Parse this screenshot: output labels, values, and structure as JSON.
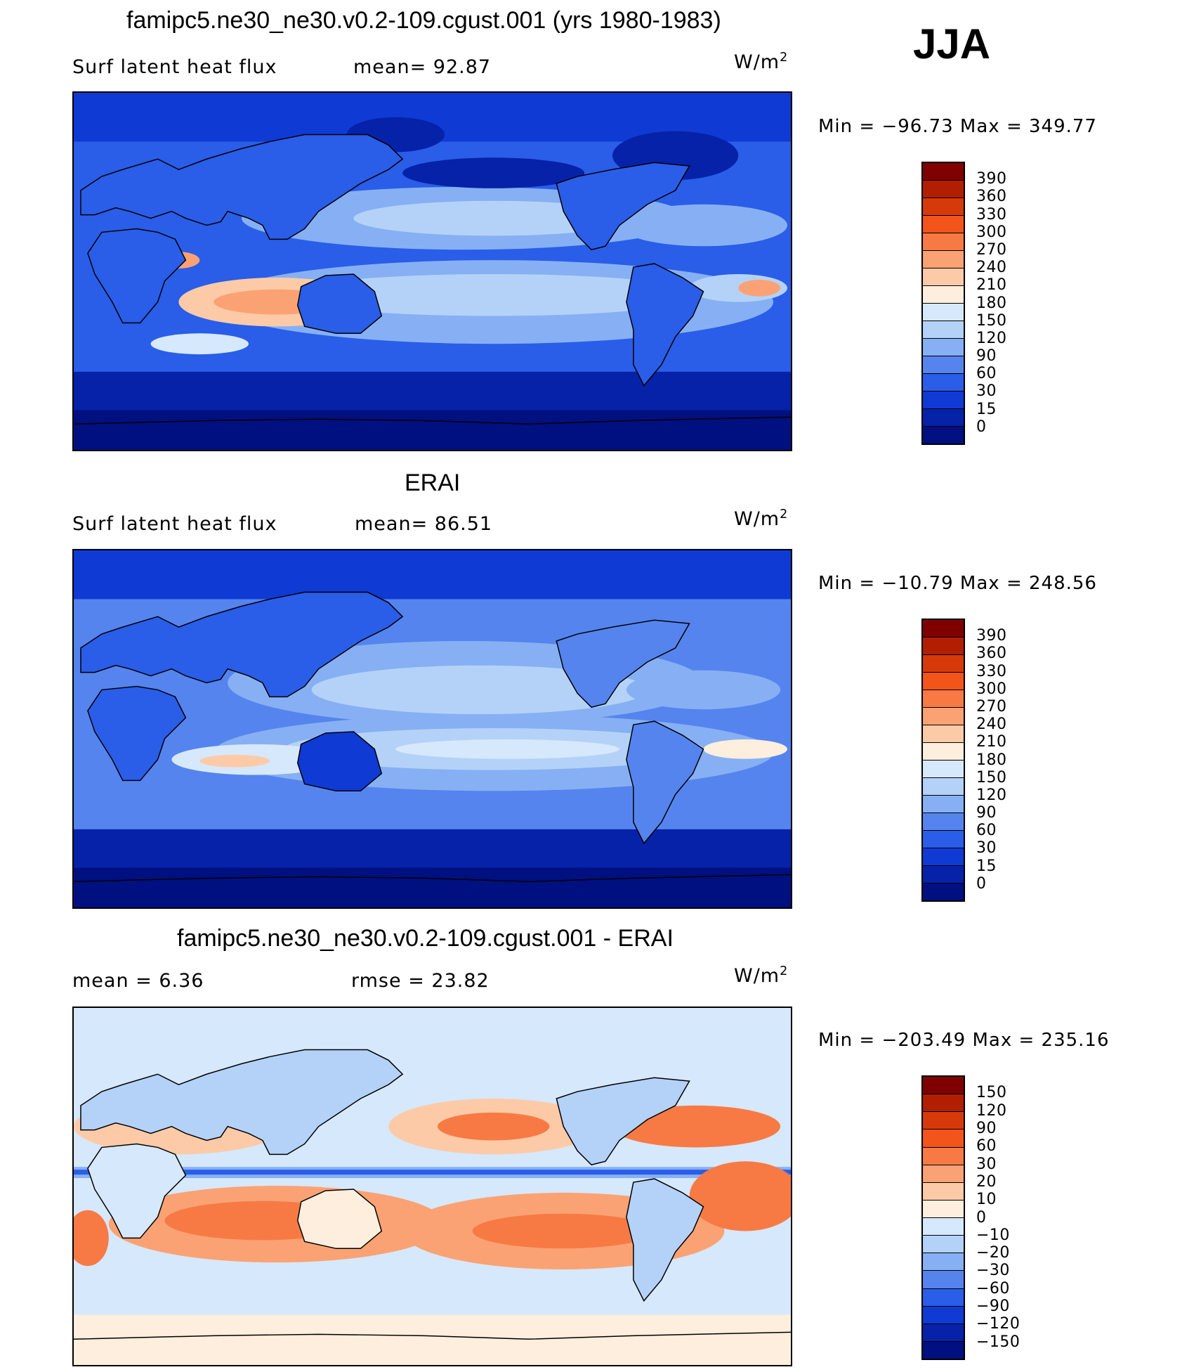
{
  "header": {
    "main_title": "famipc5.ne30_ne30.v0.2-109.cgust.001 (yrs 1980-1983)",
    "season": "JJA"
  },
  "panels": [
    {
      "id": "model",
      "title": "",
      "left_label": "Surf latent heat flux",
      "mid_label": "mean=  92.87",
      "units": "W/m",
      "units_sup": "2",
      "minmax": "Min = −96.73 Max = 349.77",
      "scale": [
        "390",
        "360",
        "330",
        "300",
        "270",
        "240",
        "210",
        "180",
        "150",
        "120",
        "90",
        "60",
        "30",
        "15",
        "0"
      ],
      "colors": [
        "#800000",
        "#b21e00",
        "#d63a0a",
        "#f2541a",
        "#f77a45",
        "#fba274",
        "#fdcaa8",
        "#fdeedd",
        "#d6e8fb",
        "#b4d2f8",
        "#86b0f3",
        "#5584ee",
        "#2a5de8",
        "#0f3ad4",
        "#0622a8",
        "#001080"
      ],
      "mean_value": 92.87,
      "min_value": -96.73,
      "max_value": 349.77
    },
    {
      "id": "obs",
      "title": "ERAI",
      "left_label": "Surf latent heat flux",
      "mid_label": "mean=  86.51",
      "units": "W/m",
      "units_sup": "2",
      "minmax": "Min = −10.79 Max = 248.56",
      "scale": [
        "390",
        "360",
        "330",
        "300",
        "270",
        "240",
        "210",
        "180",
        "150",
        "120",
        "90",
        "60",
        "30",
        "15",
        "0"
      ],
      "colors": [
        "#800000",
        "#b21e00",
        "#d63a0a",
        "#f2541a",
        "#f77a45",
        "#fba274",
        "#fdcaa8",
        "#fdeedd",
        "#d6e8fb",
        "#b4d2f8",
        "#86b0f3",
        "#5584ee",
        "#2a5de8",
        "#0f3ad4",
        "#0622a8",
        "#001080"
      ],
      "mean_value": 86.51,
      "min_value": -10.79,
      "max_value": 248.56
    },
    {
      "id": "diff",
      "title": "famipc5.ne30_ne30.v0.2-109.cgust.001 - ERAI",
      "left_label": "mean =    6.36",
      "mid_label": "rmse =   23.82",
      "units": "W/m",
      "units_sup": "2",
      "minmax": "Min = −203.49 Max = 235.16",
      "scale": [
        "150",
        "120",
        "90",
        "60",
        "30",
        "20",
        "10",
        "0",
        "−10",
        "−20",
        "−30",
        "−60",
        "−90",
        "−120",
        "−150"
      ],
      "colors": [
        "#800000",
        "#b21e00",
        "#d63a0a",
        "#f2541a",
        "#f77a45",
        "#fba274",
        "#fdcaa8",
        "#fdeedd",
        "#d6e8fb",
        "#b4d2f8",
        "#86b0f3",
        "#5584ee",
        "#2a5de8",
        "#0f3ad4",
        "#0622a8",
        "#001080"
      ],
      "mean_value": 6.36,
      "rmse_value": 23.82,
      "min_value": -203.49,
      "max_value": 235.16
    }
  ]
}
